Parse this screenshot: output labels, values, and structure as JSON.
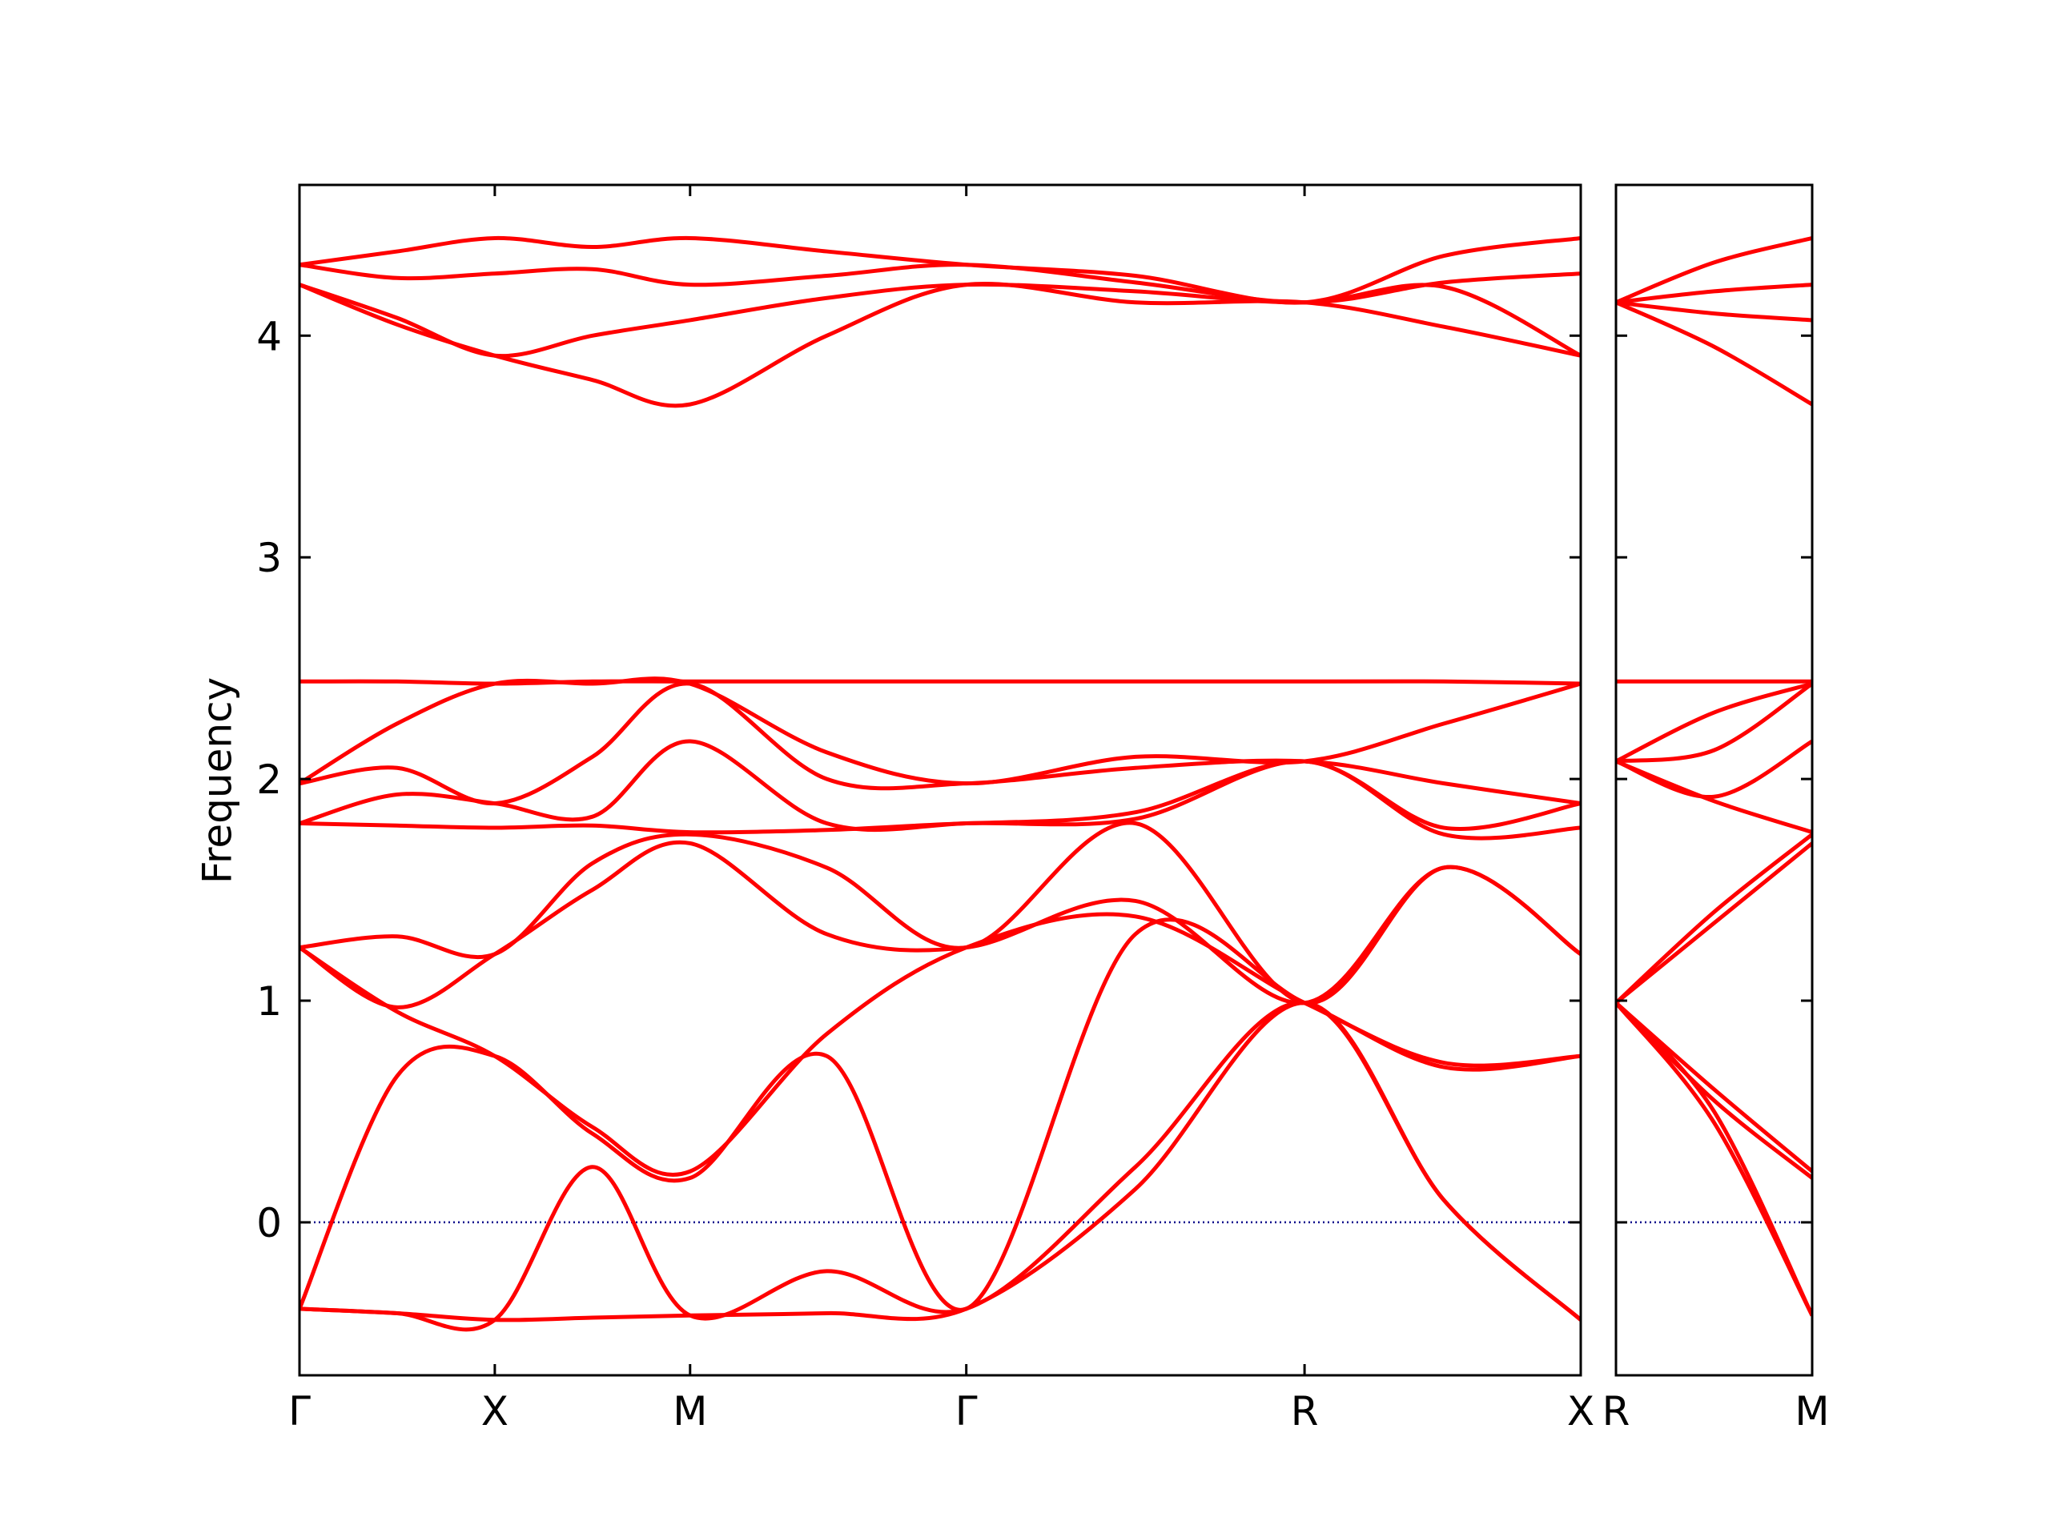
{
  "chart_data": [
    {
      "type": "line",
      "ylabel": "Frequency",
      "color": "#ff0000",
      "hline": 0,
      "hline_color": "#00008b",
      "x": [
        0,
        0.25,
        0.5,
        0.75,
        1.0,
        1.35,
        1.7071,
        2.14,
        2.5731,
        2.93,
        3.2802
      ],
      "xlim": [
        0,
        3.2802
      ],
      "xticks": [
        {
          "value": 0,
          "label": "Γ"
        },
        {
          "value": 0.5,
          "label": "X"
        },
        {
          "value": 1.0,
          "label": "M"
        },
        {
          "value": 1.7071,
          "label": "Γ"
        },
        {
          "value": 2.5731,
          "label": "R"
        },
        {
          "value": 3.2802,
          "label": "X"
        }
      ],
      "ylim": [
        -0.69,
        4.68
      ],
      "yticks": [
        0,
        1,
        2,
        3,
        4
      ],
      "series": [
        {
          "values": [
            -0.39,
            -0.41,
            -0.44,
            -0.43,
            -0.42,
            -0.41,
            -0.39,
            0.15,
            0.99,
            0.1,
            -0.44
          ]
        },
        {
          "values": [
            -0.39,
            -0.41,
            -0.44,
            0.25,
            -0.42,
            -0.22,
            -0.39,
            0.25,
            0.99,
            0.1,
            -0.44
          ]
        },
        {
          "values": [
            -0.39,
            0.66,
            0.75,
            0.4,
            0.2,
            0.75,
            -0.39,
            1.3,
            0.99,
            0.7,
            0.75
          ]
        },
        {
          "values": [
            1.24,
            0.95,
            0.75,
            0.43,
            0.23,
            0.85,
            1.24,
            1.38,
            0.99,
            0.72,
            0.75
          ]
        },
        {
          "values": [
            1.24,
            0.97,
            1.21,
            1.5,
            1.71,
            1.3,
            1.24,
            1.45,
            0.99,
            1.6,
            1.21
          ]
        },
        {
          "values": [
            1.24,
            1.29,
            1.21,
            1.62,
            1.75,
            1.6,
            1.24,
            1.8,
            0.99,
            1.6,
            1.21
          ]
        },
        {
          "values": [
            1.8,
            1.79,
            1.78,
            1.79,
            1.76,
            1.77,
            1.8,
            1.82,
            2.08,
            1.75,
            1.78
          ]
        },
        {
          "values": [
            1.8,
            1.93,
            1.89,
            1.83,
            2.17,
            1.8,
            1.8,
            1.85,
            2.08,
            1.78,
            1.89
          ]
        },
        {
          "values": [
            1.98,
            2.05,
            1.89,
            2.1,
            2.43,
            2.0,
            1.98,
            2.05,
            2.08,
            1.98,
            1.89
          ]
        },
        {
          "values": [
            1.98,
            2.25,
            2.43,
            2.43,
            2.43,
            2.12,
            1.98,
            2.1,
            2.08,
            2.25,
            2.43
          ]
        },
        {
          "values": [
            2.44,
            2.44,
            2.43,
            2.44,
            2.44,
            2.44,
            2.44,
            2.44,
            2.44,
            2.44,
            2.43
          ]
        },
        {
          "values": [
            4.23,
            4.05,
            3.91,
            3.8,
            3.69,
            4.0,
            4.23,
            4.15,
            4.15,
            4.04,
            3.91
          ]
        },
        {
          "values": [
            4.23,
            4.08,
            3.91,
            4.0,
            4.07,
            4.17,
            4.23,
            4.2,
            4.15,
            4.22,
            3.91
          ]
        },
        {
          "values": [
            4.32,
            4.26,
            4.28,
            4.3,
            4.23,
            4.27,
            4.32,
            4.24,
            4.15,
            4.24,
            4.28
          ]
        },
        {
          "values": [
            4.32,
            4.38,
            4.44,
            4.4,
            4.44,
            4.38,
            4.32,
            4.27,
            4.15,
            4.36,
            4.44
          ]
        }
      ]
    },
    {
      "type": "line",
      "color": "#ff0000",
      "hline": 0,
      "hline_color": "#00008b",
      "x": [
        0,
        0.25,
        0.5
      ],
      "xlim": [
        0,
        0.5
      ],
      "xticks": [
        {
          "value": 0,
          "label": "R"
        },
        {
          "value": 0.5,
          "label": "M"
        }
      ],
      "ylim": [
        -0.69,
        4.68
      ],
      "series": [
        {
          "values": [
            0.99,
            0.45,
            -0.42
          ]
        },
        {
          "values": [
            0.99,
            0.5,
            -0.42
          ]
        },
        {
          "values": [
            0.99,
            0.55,
            0.2
          ]
        },
        {
          "values": [
            0.99,
            0.6,
            0.23
          ]
        },
        {
          "values": [
            0.99,
            1.35,
            1.71
          ]
        },
        {
          "values": [
            0.99,
            1.4,
            1.75
          ]
        },
        {
          "values": [
            2.08,
            1.9,
            1.76
          ]
        },
        {
          "values": [
            2.08,
            1.92,
            2.17
          ]
        },
        {
          "values": [
            2.08,
            2.13,
            2.43
          ]
        },
        {
          "values": [
            2.08,
            2.3,
            2.43
          ]
        },
        {
          "values": [
            2.44,
            2.44,
            2.44
          ]
        },
        {
          "values": [
            4.15,
            3.95,
            3.69
          ]
        },
        {
          "values": [
            4.15,
            4.1,
            4.07
          ]
        },
        {
          "values": [
            4.15,
            4.2,
            4.23
          ]
        },
        {
          "values": [
            4.15,
            4.33,
            4.44
          ]
        }
      ]
    }
  ]
}
